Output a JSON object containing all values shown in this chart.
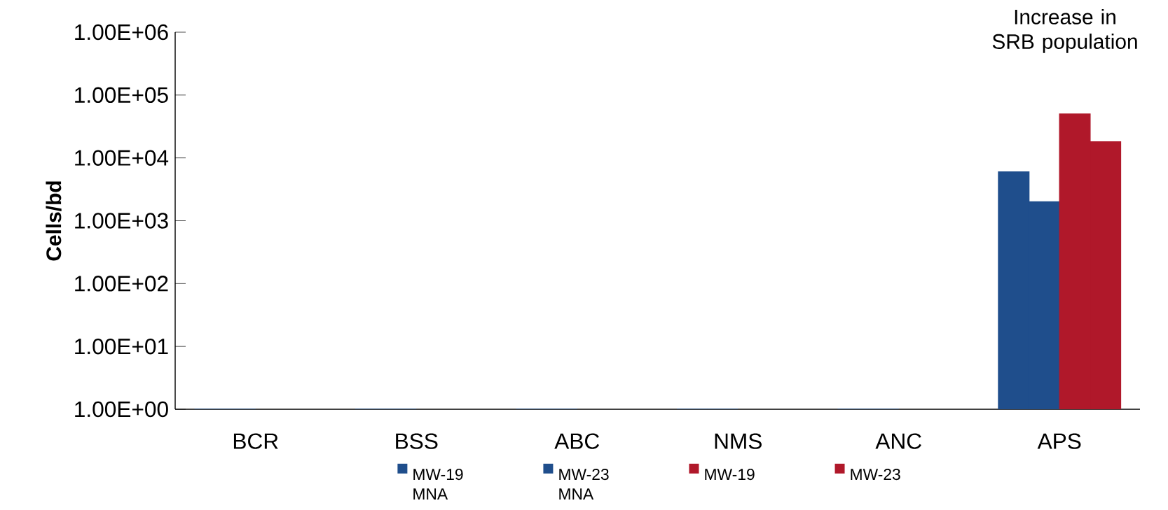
{
  "chart_data": {
    "type": "bar",
    "ylabel": "Cells/bd",
    "log": true,
    "grid": false,
    "legend": "bottom",
    "annotations": [
      "Increase in SRB population"
    ],
    "categories": [
      "BCR",
      "BSS",
      "ABC",
      "NMS",
      "ANC",
      "APS"
    ],
    "ylim": [
      1,
      1000000
    ],
    "yticks": [
      {
        "value": 1,
        "label": "1.00E+00"
      },
      {
        "value": 10,
        "label": "1.00E+01"
      },
      {
        "value": 100,
        "label": "1.00E+02"
      },
      {
        "value": 1000,
        "label": "1.00E+03"
      },
      {
        "value": 10000,
        "label": "1.00E+04"
      },
      {
        "value": 100000,
        "label": "1.00E+05"
      },
      {
        "value": 1000000,
        "label": "1.00E+06"
      }
    ],
    "series": [
      {
        "name": "MW-19 MNA",
        "color": "#1f4e8c",
        "values": [
          1,
          1,
          1,
          1,
          1,
          6000
        ]
      },
      {
        "name": "MW-23 MNA",
        "color": "#1f4e8c",
        "values": [
          1,
          1,
          1,
          1,
          1,
          2000
        ]
      },
      {
        "name": "MW-19",
        "color": "#b0182a",
        "values": [
          null,
          null,
          null,
          null,
          null,
          50000
        ]
      },
      {
        "name": "MW-23",
        "color": "#b0182a",
        "values": [
          null,
          null,
          null,
          null,
          null,
          18000
        ]
      }
    ]
  }
}
